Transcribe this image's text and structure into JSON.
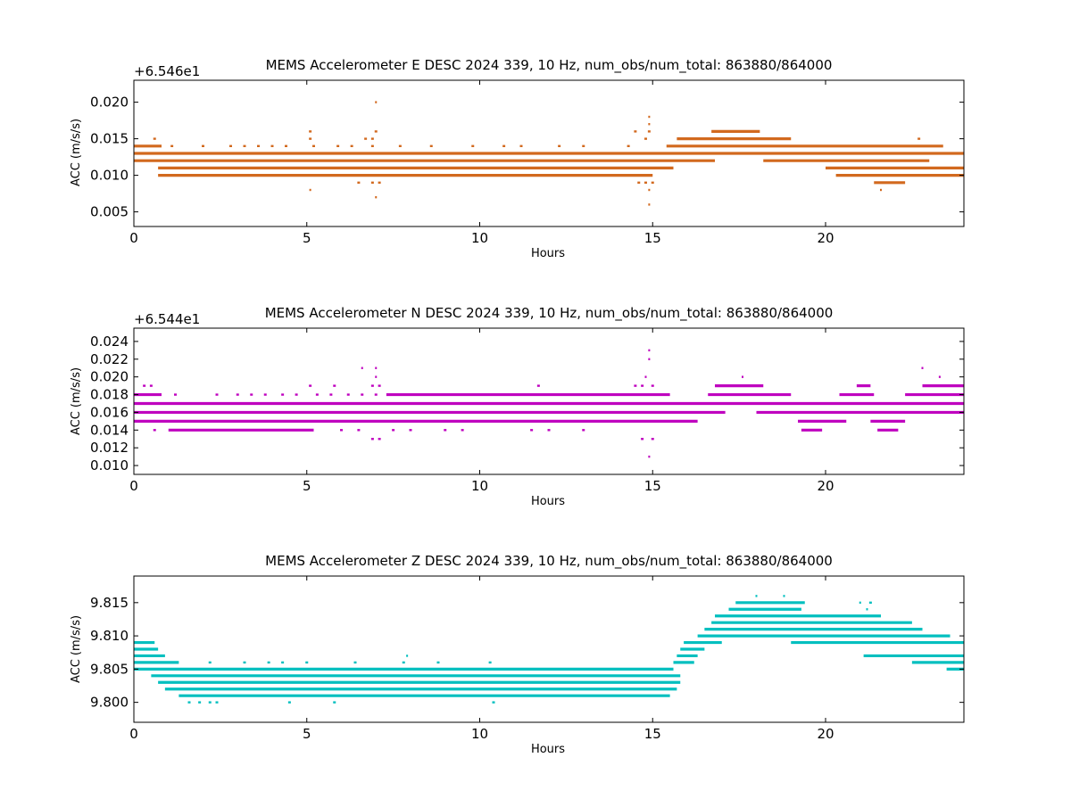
{
  "chart_data": [
    {
      "type": "scatter",
      "title": "MEMS Accelerometer E DESC 2024 339, 10 Hz, num_obs/num_total: 863880/864000",
      "xlabel": "Hours",
      "ylabel": "ACC (m/s/s)",
      "offset_text": "+6.546e1",
      "color": "#d2691e",
      "xlim": [
        0,
        24
      ],
      "ylim": [
        0.003,
        0.023
      ],
      "xticks": [
        0,
        5,
        10,
        15,
        20
      ],
      "xtick_labels": [
        "0",
        "5",
        "10",
        "15",
        "20"
      ],
      "yticks": [
        0.005,
        0.01,
        0.015,
        0.02
      ],
      "ytick_labels": [
        "0.005",
        "0.010",
        "0.015",
        "0.020"
      ],
      "levels": [
        {
          "y": 0.014,
          "spans": [
            [
              0,
              0.8
            ]
          ],
          "dots": [
            1.1,
            2.0,
            2.8,
            3.2,
            3.6,
            4.0,
            4.4,
            5.2,
            5.9,
            6.3,
            6.9,
            7.7,
            8.6,
            9.8,
            10.7,
            11.2,
            12.3,
            13.0,
            14.3
          ]
        },
        {
          "y": 0.013,
          "spans": [
            [
              0,
              24
            ]
          ]
        },
        {
          "y": 0.012,
          "spans": [
            [
              0,
              16.8
            ],
            [
              18.2,
              23.0
            ]
          ]
        },
        {
          "y": 0.011,
          "spans": [
            [
              0.7,
              15.6
            ],
            [
              20.0,
              24
            ]
          ]
        },
        {
          "y": 0.01,
          "spans": [
            [
              0.7,
              15.0
            ],
            [
              20.3,
              24
            ]
          ]
        },
        {
          "y": 0.015,
          "spans": [
            [
              15.7,
              19.0
            ]
          ],
          "dots": [
            0.6,
            5.1,
            6.7,
            6.9,
            14.8,
            22.7
          ]
        },
        {
          "y": 0.016,
          "spans": [
            [
              16.7,
              18.1
            ]
          ],
          "dots": [
            5.1,
            7.0,
            14.5,
            14.9
          ]
        },
        {
          "y": 0.014,
          "spans": [
            [
              15.4,
              23.4
            ]
          ]
        },
        {
          "y": 0.009,
          "spans": [
            [
              21.4,
              22.3
            ]
          ],
          "dots": [
            6.5,
            6.9,
            7.1,
            14.6,
            14.8,
            15.0
          ]
        }
      ],
      "outliers": [
        {
          "x": 7.0,
          "y": 0.02
        },
        {
          "x": 14.9,
          "y": 0.018
        },
        {
          "x": 14.9,
          "y": 0.017
        },
        {
          "x": 5.1,
          "y": 0.008
        },
        {
          "x": 7.0,
          "y": 0.007
        },
        {
          "x": 14.9,
          "y": 0.006
        },
        {
          "x": 14.9,
          "y": 0.008
        },
        {
          "x": 21.6,
          "y": 0.008
        }
      ]
    },
    {
      "type": "scatter",
      "title": "MEMS Accelerometer N DESC 2024 339, 10 Hz, num_obs/num_total: 863880/864000",
      "xlabel": "Hours",
      "ylabel": "ACC (m/s/s)",
      "offset_text": "+6.544e1",
      "color": "#bf00bf",
      "xlim": [
        0,
        24
      ],
      "ylim": [
        0.009,
        0.0255
      ],
      "xticks": [
        0,
        5,
        10,
        15,
        20
      ],
      "xtick_labels": [
        "0",
        "5",
        "10",
        "15",
        "20"
      ],
      "yticks": [
        0.01,
        0.012,
        0.014,
        0.016,
        0.018,
        0.02,
        0.022,
        0.024
      ],
      "ytick_labels": [
        "0.010",
        "0.012",
        "0.014",
        "0.016",
        "0.018",
        "0.020",
        "0.022",
        "0.024"
      ],
      "levels": [
        {
          "y": 0.018,
          "spans": [
            [
              0,
              0.8
            ],
            [
              7.3,
              15.5
            ],
            [
              16.6,
              19.0
            ],
            [
              20.4,
              21.4
            ],
            [
              22.3,
              24
            ]
          ],
          "dots": [
            1.2,
            2.4,
            3.0,
            3.4,
            3.8,
            4.3,
            4.7,
            5.3,
            5.7,
            6.2,
            6.6,
            7.0
          ]
        },
        {
          "y": 0.017,
          "spans": [
            [
              0,
              24
            ]
          ]
        },
        {
          "y": 0.016,
          "spans": [
            [
              0,
              17.1
            ],
            [
              18.0,
              24
            ]
          ]
        },
        {
          "y": 0.015,
          "spans": [
            [
              0,
              16.3
            ],
            [
              19.2,
              20.6
            ],
            [
              21.3,
              22.3
            ]
          ]
        },
        {
          "y": 0.014,
          "spans": [
            [
              1.0,
              5.2
            ],
            [
              19.3,
              19.9
            ],
            [
              21.5,
              22.1
            ]
          ],
          "dots": [
            0.6,
            6.0,
            6.5,
            7.5,
            8.0,
            9.0,
            9.5,
            11.5,
            12.0,
            13.0
          ]
        },
        {
          "y": 0.019,
          "spans": [
            [
              16.8,
              18.2
            ],
            [
              20.9,
              21.3
            ],
            [
              22.8,
              24
            ]
          ],
          "dots": [
            0.3,
            0.5,
            5.1,
            5.8,
            6.9,
            7.1,
            11.7,
            14.5,
            14.7,
            15.0
          ]
        },
        {
          "y": 0.013,
          "dots": [
            6.9,
            7.1,
            14.7,
            15.0
          ]
        }
      ],
      "outliers": [
        {
          "x": 6.6,
          "y": 0.021
        },
        {
          "x": 7.0,
          "y": 0.021
        },
        {
          "x": 7.0,
          "y": 0.02
        },
        {
          "x": 14.9,
          "y": 0.023
        },
        {
          "x": 14.9,
          "y": 0.022
        },
        {
          "x": 14.8,
          "y": 0.02
        },
        {
          "x": 14.9,
          "y": 0.011
        },
        {
          "x": 17.6,
          "y": 0.02
        },
        {
          "x": 22.8,
          "y": 0.021
        },
        {
          "x": 23.3,
          "y": 0.02
        }
      ]
    },
    {
      "type": "scatter",
      "title": "MEMS Accelerometer Z DESC 2024 339, 10 Hz, num_obs/num_total: 863880/864000",
      "xlabel": "Hours",
      "ylabel": "ACC (m/s/s)",
      "offset_text": "",
      "color": "#00bfbf",
      "xlim": [
        0,
        24
      ],
      "ylim": [
        9.797,
        9.819
      ],
      "xticks": [
        0,
        5,
        10,
        15,
        20
      ],
      "xtick_labels": [
        "0",
        "5",
        "10",
        "15",
        "20"
      ],
      "yticks": [
        9.8,
        9.805,
        9.81,
        9.815
      ],
      "ytick_labels": [
        "9.800",
        "9.805",
        "9.810",
        "9.815"
      ],
      "levels": [
        {
          "y": 9.809,
          "spans": [
            [
              0,
              0.6
            ],
            [
              15.9,
              17.0
            ],
            [
              19.0,
              24
            ]
          ]
        },
        {
          "y": 9.808,
          "spans": [
            [
              0,
              0.7
            ],
            [
              15.8,
              16.5
            ]
          ]
        },
        {
          "y": 9.807,
          "spans": [
            [
              0,
              0.9
            ],
            [
              15.7,
              16.3
            ],
            [
              21.1,
              24
            ]
          ]
        },
        {
          "y": 9.806,
          "spans": [
            [
              0,
              1.3
            ],
            [
              15.6,
              16.2
            ],
            [
              22.5,
              24
            ]
          ],
          "dots": [
            2.2,
            3.2,
            3.9,
            4.3,
            5.0,
            6.4,
            7.8,
            8.8,
            10.3
          ]
        },
        {
          "y": 9.805,
          "spans": [
            [
              0,
              15.6
            ],
            [
              23.5,
              24
            ]
          ]
        },
        {
          "y": 9.804,
          "spans": [
            [
              0.5,
              15.8
            ]
          ]
        },
        {
          "y": 9.803,
          "spans": [
            [
              0.7,
              15.8
            ]
          ]
        },
        {
          "y": 9.802,
          "spans": [
            [
              0.9,
              15.7
            ]
          ]
        },
        {
          "y": 9.801,
          "spans": [
            [
              1.3,
              15.5
            ]
          ]
        },
        {
          "y": 9.8,
          "dots": [
            1.6,
            1.9,
            2.2,
            2.4,
            4.5,
            5.8,
            10.4
          ]
        },
        {
          "y": 9.81,
          "spans": [
            [
              16.3,
              23.6
            ]
          ]
        },
        {
          "y": 9.811,
          "spans": [
            [
              16.5,
              22.8
            ]
          ]
        },
        {
          "y": 9.812,
          "spans": [
            [
              16.7,
              22.5
            ]
          ]
        },
        {
          "y": 9.813,
          "spans": [
            [
              16.8,
              21.6
            ]
          ]
        },
        {
          "y": 9.814,
          "spans": [
            [
              17.2,
              19.3
            ]
          ]
        },
        {
          "y": 9.815,
          "spans": [
            [
              17.4,
              19.4
            ]
          ],
          "dots": [
            21.3
          ]
        }
      ],
      "outliers": [
        {
          "x": 7.9,
          "y": 9.807
        },
        {
          "x": 18.0,
          "y": 9.816
        },
        {
          "x": 18.8,
          "y": 9.816
        },
        {
          "x": 21.0,
          "y": 9.815
        },
        {
          "x": 21.2,
          "y": 9.814
        }
      ]
    }
  ]
}
